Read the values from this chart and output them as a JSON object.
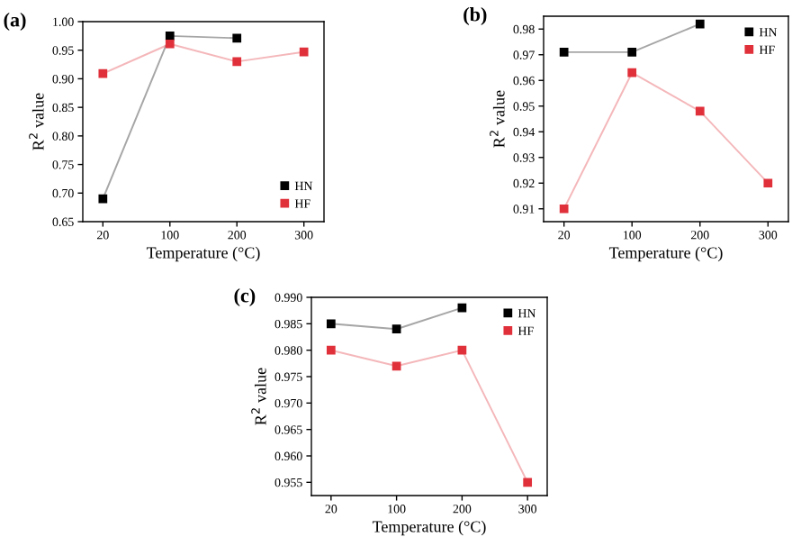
{
  "chart_data": [
    {
      "type": "line",
      "title": "(a)",
      "xlabel": "Temperature (°C)",
      "ylabel": "R$^{2}$ value",
      "categories": [
        "20",
        "100",
        "200",
        "300"
      ],
      "marker": "square",
      "legend": "bottom right",
      "grid": false,
      "series": [
        {
          "name": "HN",
          "color": "#000000",
          "values": [
            0.69,
            0.975,
            0.971,
            null
          ]
        },
        {
          "name": "HF",
          "color": "#e0303a",
          "values": [
            0.909,
            0.961,
            0.93,
            0.947
          ]
        }
      ],
      "ylim": [
        0.65,
        1.0
      ],
      "yticks": [
        {
          "value": 0.65,
          "label": "0.65"
        },
        {
          "value": 0.7,
          "label": "0.70"
        },
        {
          "value": 0.75,
          "label": "0.75"
        },
        {
          "value": 0.8,
          "label": "0.80"
        },
        {
          "value": 0.85,
          "label": "0.85"
        },
        {
          "value": 0.9,
          "label": "0.90"
        },
        {
          "value": 0.95,
          "label": "0.95"
        },
        {
          "value": 1.0,
          "label": "1.00"
        }
      ]
    },
    {
      "type": "line",
      "title": "(b)",
      "xlabel": "Temperature (°C)",
      "ylabel": "R$^{2}$ value",
      "categories": [
        "20",
        "100",
        "200",
        "300"
      ],
      "marker": "square",
      "legend": "top right",
      "grid": false,
      "series": [
        {
          "name": "HN",
          "color": "#000000",
          "values": [
            0.971,
            0.971,
            0.982,
            null
          ]
        },
        {
          "name": "HF",
          "color": "#e0303a",
          "values": [
            0.91,
            0.963,
            0.948,
            0.92
          ]
        }
      ],
      "ylim": [
        0.905,
        0.985
      ],
      "yticks": [
        0.91,
        0.92,
        0.93,
        0.94,
        0.95,
        0.96,
        0.97,
        0.98
      ]
    },
    {
      "type": "line",
      "title": "(c)",
      "xlabel": "Temperature (°C)",
      "ylabel": "R$^{2}$ value",
      "categories": [
        "20",
        "100",
        "200",
        "300"
      ],
      "marker": "square",
      "legend": "top right",
      "grid": false,
      "series": [
        {
          "name": "HN",
          "color": "#000000",
          "values": [
            0.985,
            0.984,
            0.988,
            null
          ]
        },
        {
          "name": "HF",
          "color": "#e0303a",
          "values": [
            0.98,
            0.977,
            0.98,
            0.955
          ]
        }
      ],
      "ylim": [
        0.9525,
        0.99
      ],
      "yticks": [
        0.955,
        {
          "value": 0.96,
          "label": "0.960"
        },
        0.965,
        {
          "value": 0.97,
          "label": "0.970"
        },
        0.975,
        {
          "value": 0.98,
          "label": "0.980"
        },
        0.985,
        {
          "value": 0.99,
          "label": "0.990"
        }
      ]
    }
  ]
}
